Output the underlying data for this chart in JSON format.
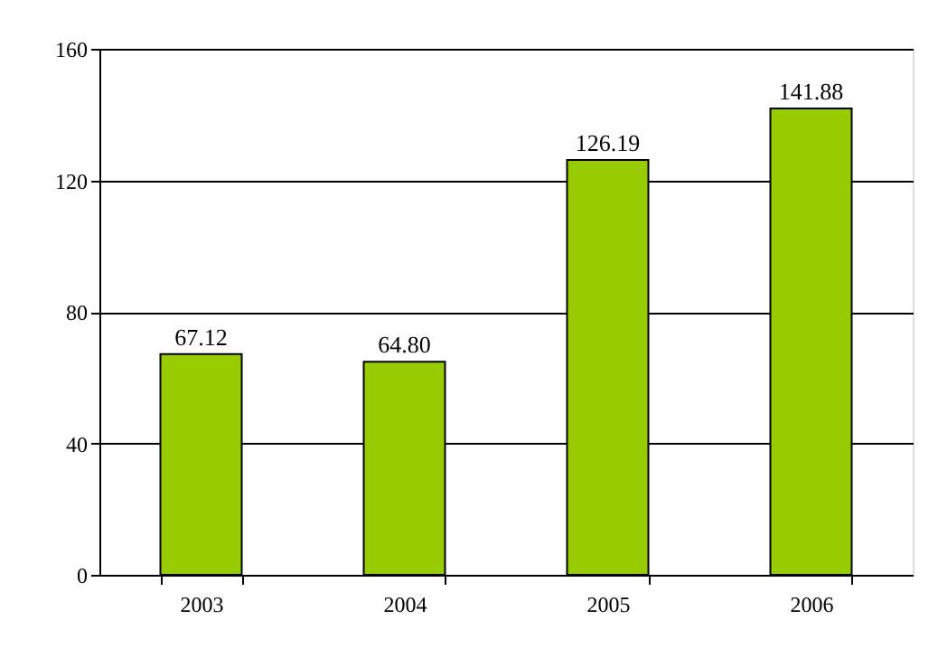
{
  "chart_data": {
    "type": "bar",
    "categories": [
      "2003",
      "2004",
      "2005",
      "2006"
    ],
    "values": [
      67.12,
      64.8,
      126.19,
      141.88
    ],
    "value_labels": [
      "67.12",
      "64.80",
      "126.19",
      "141.88"
    ],
    "color": "#99cc00",
    "ylim": [
      0,
      160
    ],
    "yticks": [
      0,
      40,
      80,
      120,
      160
    ],
    "grid": "y"
  }
}
